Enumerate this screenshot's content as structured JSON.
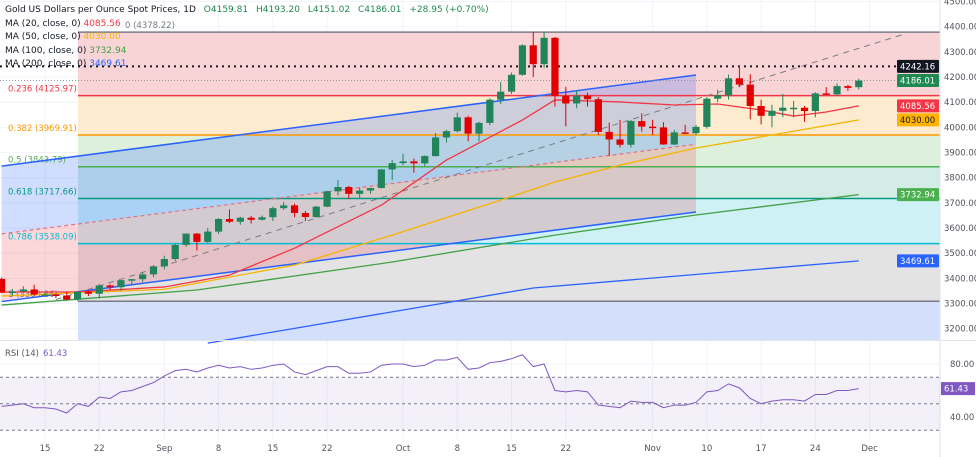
{
  "legend": {
    "symbol": "Gold US Dollars per Ounce Spot Prices, 1D",
    "open": "O4159.81",
    "high": "H4193.20",
    "low": "L4151.02",
    "close": "C4186.01",
    "change": "+28.95 (+0.70%)",
    "ma": [
      {
        "label": "MA (20, close, 0)",
        "value": "4085.56",
        "color": "#f23645"
      },
      {
        "label": "MA (50, close, 0)",
        "value": "4030.00",
        "color": "#f5b400"
      },
      {
        "label": "MA (100, close, 0)",
        "value": "3732.94",
        "color": "#43a047"
      },
      {
        "label": "MA (200, close, 0)",
        "value": "3469.61",
        "color": "#2962ff"
      }
    ]
  },
  "rsi_legend": {
    "label": "RSI (14)",
    "value": "61.43"
  },
  "chart_data": [
    {
      "type": "candlestick",
      "title": "Gold US Dollars per Ounce Spot Prices, 1D",
      "ylim": [
        3150,
        4500
      ],
      "y_ticks": [
        4500,
        4400,
        4300,
        4200,
        4100,
        4000,
        3900,
        3800,
        3700,
        3600,
        3500,
        3400,
        3300,
        3200
      ],
      "x_tick_labels": [
        {
          "label": "15",
          "date": "Aug 15"
        },
        {
          "label": "22",
          "date": "Aug 22"
        },
        {
          "label": "Sep",
          "date": "Sep 1"
        },
        {
          "label": "8",
          "date": "Sep 8"
        },
        {
          "label": "15",
          "date": "Sep 15"
        },
        {
          "label": "22",
          "date": "Sep 22"
        },
        {
          "label": "Oct",
          "date": "Oct 1"
        },
        {
          "label": "8",
          "date": "Oct 8"
        },
        {
          "label": "15",
          "date": "Oct 15"
        },
        {
          "label": "22",
          "date": "Oct 22"
        },
        {
          "label": "Nov",
          "date": "Nov 3"
        },
        {
          "label": "10",
          "date": "Nov 10"
        },
        {
          "label": "17",
          "date": "Nov 17"
        },
        {
          "label": "24",
          "date": "Nov 24"
        },
        {
          "label": "Dec",
          "date": "Dec 1"
        }
      ],
      "candles_columns": [
        "date",
        "open",
        "high",
        "low",
        "close"
      ],
      "candles": [
        [
          "Aug 11",
          3398,
          3404,
          3341,
          3343
        ],
        [
          "Aug 12",
          3343,
          3358,
          3331,
          3348
        ],
        [
          "Aug 13",
          3348,
          3369,
          3345,
          3356
        ],
        [
          "Aug 14",
          3356,
          3375,
          3331,
          3336
        ],
        [
          "Aug 15",
          3336,
          3345,
          3331,
          3336
        ],
        [
          "Aug 18",
          3336,
          3340,
          3322,
          3332
        ],
        [
          "Aug 19",
          3332,
          3345,
          3314,
          3316
        ],
        [
          "Aug 20",
          3316,
          3350,
          3311,
          3347
        ],
        [
          "Aug 21",
          3347,
          3352,
          3330,
          3339
        ],
        [
          "Aug 22",
          3339,
          3378,
          3321,
          3372
        ],
        [
          "Aug 25",
          3372,
          3376,
          3355,
          3365
        ],
        [
          "Aug 26",
          3365,
          3394,
          3351,
          3393
        ],
        [
          "Aug 27",
          3393,
          3398,
          3373,
          3397
        ],
        [
          "Aug 28",
          3397,
          3423,
          3386,
          3416
        ],
        [
          "Aug 29",
          3416,
          3453,
          3405,
          3448
        ],
        [
          "Sep 1",
          3448,
          3490,
          3436,
          3477
        ],
        [
          "Sep 2",
          3477,
          3540,
          3470,
          3533
        ],
        [
          "Sep 3",
          3533,
          3578,
          3525,
          3578
        ],
        [
          "Sep 4",
          3578,
          3580,
          3511,
          3545
        ],
        [
          "Sep 5",
          3545,
          3600,
          3540,
          3586
        ],
        [
          "Sep 8",
          3586,
          3640,
          3577,
          3636
        ],
        [
          "Sep 9",
          3636,
          3674,
          3620,
          3625
        ],
        [
          "Sep 10",
          3625,
          3645,
          3613,
          3641
        ],
        [
          "Sep 11",
          3641,
          3648,
          3618,
          3633
        ],
        [
          "Sep 12",
          3633,
          3650,
          3630,
          3643
        ],
        [
          "Sep 15",
          3643,
          3685,
          3628,
          3679
        ],
        [
          "Sep 16",
          3679,
          3703,
          3672,
          3690
        ],
        [
          "Sep 17",
          3690,
          3697,
          3643,
          3660
        ],
        [
          "Sep 18",
          3660,
          3668,
          3628,
          3644
        ],
        [
          "Sep 19",
          3644,
          3688,
          3640,
          3685
        ],
        [
          "Sep 22",
          3685,
          3749,
          3683,
          3746
        ],
        [
          "Sep 23",
          3746,
          3791,
          3730,
          3763
        ],
        [
          "Sep 24",
          3763,
          3768,
          3717,
          3736
        ],
        [
          "Sep 25",
          3736,
          3761,
          3721,
          3749
        ],
        [
          "Sep 26",
          3749,
          3760,
          3737,
          3759
        ],
        [
          "Sep 29",
          3759,
          3834,
          3757,
          3833
        ],
        [
          "Sep 30",
          3833,
          3871,
          3791,
          3858
        ],
        [
          "Oct 1",
          3858,
          3895,
          3850,
          3865
        ],
        [
          "Oct 2",
          3865,
          3876,
          3820,
          3857
        ],
        [
          "Oct 3",
          3857,
          3889,
          3845,
          3886
        ],
        [
          "Oct 6",
          3886,
          3977,
          3884,
          3960
        ],
        [
          "Oct 7",
          3960,
          3990,
          3940,
          3985
        ],
        [
          "Oct 8",
          3985,
          4059,
          3980,
          4040
        ],
        [
          "Oct 9",
          4040,
          4046,
          3945,
          3975
        ],
        [
          "Oct 10",
          3975,
          4022,
          3945,
          4018
        ],
        [
          "Oct 13",
          4018,
          4116,
          4008,
          4110
        ],
        [
          "Oct 14",
          4110,
          4180,
          4093,
          4142
        ],
        [
          "Oct 15",
          4142,
          4218,
          4133,
          4209
        ],
        [
          "Oct 16",
          4209,
          4330,
          4205,
          4326
        ],
        [
          "Oct 17",
          4326,
          4380,
          4200,
          4251
        ],
        [
          "Oct 20",
          4251,
          4381,
          4236,
          4356
        ],
        [
          "Oct 21",
          4356,
          4359,
          4082,
          4125
        ],
        [
          "Oct 22",
          4125,
          4161,
          4004,
          4095
        ],
        [
          "Oct 23",
          4095,
          4147,
          4076,
          4126
        ],
        [
          "Oct 24",
          4126,
          4138,
          4083,
          4112
        ],
        [
          "Oct 27",
          4112,
          4120,
          3971,
          3982
        ],
        [
          "Oct 28",
          3982,
          4019,
          3886,
          3952
        ],
        [
          "Oct 29",
          3952,
          4030,
          3920,
          3931
        ],
        [
          "Oct 30",
          3931,
          4030,
          3920,
          4025
        ],
        [
          "Oct 31",
          4025,
          4056,
          3983,
          4003
        ],
        [
          "Nov 3",
          4003,
          4030,
          3970,
          4000
        ],
        [
          "Nov 4",
          4000,
          4020,
          3931,
          3932
        ],
        [
          "Nov 5",
          3932,
          3990,
          3930,
          3980
        ],
        [
          "Nov 6",
          3980,
          4010,
          3975,
          3977
        ],
        [
          "Nov 7",
          3977,
          4010,
          3970,
          4002
        ],
        [
          "Nov 10",
          4002,
          4120,
          3995,
          4114
        ],
        [
          "Nov 11",
          4114,
          4150,
          4100,
          4128
        ],
        [
          "Nov 12",
          4128,
          4210,
          4110,
          4195
        ],
        [
          "Nov 13",
          4195,
          4245,
          4160,
          4170
        ],
        [
          "Nov 14",
          4170,
          4211,
          4032,
          4085
        ],
        [
          "Nov 17",
          4085,
          4110,
          4012,
          4046
        ],
        [
          "Nov 18",
          4046,
          4090,
          4000,
          4066
        ],
        [
          "Nov 19",
          4066,
          4133,
          4040,
          4078
        ],
        [
          "Nov 20",
          4078,
          4105,
          4040,
          4078
        ],
        [
          "Nov 21",
          4078,
          4085,
          4022,
          4065
        ],
        [
          "Nov 24",
          4065,
          4140,
          4040,
          4135
        ],
        [
          "Nov 25",
          4135,
          4160,
          4130,
          4131
        ],
        [
          "Nov 26",
          4131,
          4175,
          4125,
          4164
        ],
        [
          "Nov 27",
          4164,
          4169,
          4145,
          4157
        ],
        [
          "Nov 28",
          4159.81,
          4193.2,
          4151.02,
          4186.01
        ]
      ],
      "up_color": "#22845a",
      "down_color": "#e10000",
      "moving_averages": [
        {
          "name": "MA (20, close, 0)",
          "color": "#f23645",
          "points": [
            [
              "Aug 11",
              3346
            ],
            [
              "Aug 20",
              3346
            ],
            [
              "Sep 1",
              3366
            ],
            [
              "Sep 9",
              3413
            ],
            [
              "Sep 17",
              3520
            ],
            [
              "Sep 29",
              3691
            ],
            [
              "Oct 7",
              3870
            ],
            [
              "Oct 16",
              4029
            ],
            [
              "Oct 21",
              4109
            ],
            [
              "Oct 29",
              4101
            ],
            [
              "Nov 5",
              4089
            ],
            [
              "Nov 11",
              4093
            ],
            [
              "Nov 17",
              4069
            ],
            [
              "Nov 20",
              4045
            ],
            [
              "Nov 25",
              4061
            ],
            [
              "Nov 28",
              4085.56
            ]
          ]
        },
        {
          "name": "MA (50, close, 0)",
          "color": "#f5b400",
          "points": [
            [
              "Aug 11",
              3330
            ],
            [
              "Sep 1",
              3357
            ],
            [
              "Sep 17",
              3453
            ],
            [
              "Sep 30",
              3572
            ],
            [
              "Oct 14",
              3711
            ],
            [
              "Oct 21",
              3783
            ],
            [
              "Oct 29",
              3850
            ],
            [
              "Nov 7",
              3918
            ],
            [
              "Nov 19",
              3977
            ],
            [
              "Nov 28",
              4030.0
            ]
          ]
        },
        {
          "name": "MA (100, close, 0)",
          "color": "#43a047",
          "points": [
            [
              "Aug 11",
              3294
            ],
            [
              "Sep 4",
              3354
            ],
            [
              "Sep 30",
              3465
            ],
            [
              "Oct 21",
              3572
            ],
            [
              "Nov 7",
              3652
            ],
            [
              "Nov 28",
              3732.94
            ]
          ]
        },
        {
          "name": "MA (200, close, 0)",
          "color": "#2962ff",
          "points": [
            [
              "Sep 5",
              3143
            ],
            [
              "Oct 17",
              3362
            ],
            [
              "Nov 28",
              3469.61
            ]
          ]
        }
      ],
      "fibonacci": [
        {
          "ratio": 0,
          "label": "0 (4378.22)",
          "price": 4378.22,
          "color": "#787b86",
          "fill": ""
        },
        {
          "ratio": 0.236,
          "label": "0.236 (4125.97)",
          "price": 4125.97,
          "color": "#f23645",
          "fill": "#f9d4d7"
        },
        {
          "ratio": 0.382,
          "label": "0.382 (3969.91)",
          "price": 3969.91,
          "color": "#ff9800",
          "fill": "#fdebd0"
        },
        {
          "ratio": 0.5,
          "label": "0.5 (3843.79)",
          "price": 3843.79,
          "color": "#4caf50",
          "fill": "#ddf0dc"
        },
        {
          "ratio": 0.618,
          "label": "0.618 (3717.66)",
          "price": 3717.66,
          "color": "#089981",
          "fill": "#d3ede6"
        },
        {
          "ratio": 0.786,
          "label": "0.786 (3538.09)",
          "price": 3538.09,
          "color": "#00bcd4",
          "fill": "#cdf1f4"
        },
        {
          "ratio": 1,
          "label": "1 (3309.36)",
          "price": 3309.36,
          "color": "#787b86",
          "fill": "#e3e3e4"
        }
      ],
      "fib_extension_fill": "#d3dffb",
      "horizontal_lines": [
        {
          "price": 4242.16,
          "style": "dotted",
          "color": "#131722"
        },
        {
          "price": 4186.01,
          "style": "dotted",
          "color": "#9598a1"
        }
      ],
      "channel": {
        "upper": [
          [
            "Aug 11",
            3846
          ],
          [
            "Nov 7",
            4208
          ]
        ],
        "middle": [
          [
            "Aug 11",
            3577
          ],
          [
            "Nov 7",
            3933
          ]
        ],
        "lower": [
          [
            "Aug 11",
            3308
          ],
          [
            "Nov 7",
            3664
          ]
        ],
        "line_color": "#2962ff",
        "upper_fill": "#2962ff",
        "lower_fill": "#f23645"
      },
      "trendline": {
        "from": [
          "Aug 18",
          3316
        ],
        "to": [
          "Dec 4",
          4368
        ],
        "style": "dashed",
        "color": "#787b86"
      },
      "price_tags": [
        {
          "value": "4242.16",
          "bg": "#131722",
          "fg": "#ffffff"
        },
        {
          "value": "4186.01",
          "bg": "#1e8a4f",
          "fg": "#ffffff"
        },
        {
          "value": "4085.56",
          "bg": "#f23645",
          "fg": "#ffffff"
        },
        {
          "value": "4030.00",
          "bg": "#ffb300",
          "fg": "#131722"
        },
        {
          "value": "3732.94",
          "bg": "#4caf50",
          "fg": "#ffffff"
        },
        {
          "value": "3469.61",
          "bg": "#2962ff",
          "fg": "#ffffff"
        }
      ]
    },
    {
      "type": "line",
      "title": "RSI (14)",
      "ylim": [
        20,
        90
      ],
      "y_ticks": [
        80,
        40
      ],
      "bands": [
        70,
        50,
        30
      ],
      "color": "#7e57c2",
      "last_tag": {
        "value": "61.43",
        "bg": "#7e57c2",
        "fg": "#ffffff"
      },
      "values": [
        48,
        49,
        50,
        47,
        47,
        46,
        43,
        50,
        48,
        55,
        54,
        59,
        60,
        63,
        66,
        71,
        75,
        76,
        74,
        77,
        79,
        77,
        78,
        76,
        77,
        79,
        80,
        74,
        72,
        75,
        78,
        78,
        73,
        73,
        74,
        79,
        80,
        80,
        78,
        79,
        83,
        83,
        85,
        76,
        77,
        81,
        82,
        84,
        87,
        78,
        80,
        60,
        59,
        60,
        59,
        49,
        48,
        47,
        52,
        51,
        51,
        47,
        49,
        49,
        51,
        59,
        60,
        65,
        62,
        54,
        50,
        52,
        53,
        53,
        52,
        57,
        57,
        60,
        60,
        61.43
      ]
    }
  ]
}
